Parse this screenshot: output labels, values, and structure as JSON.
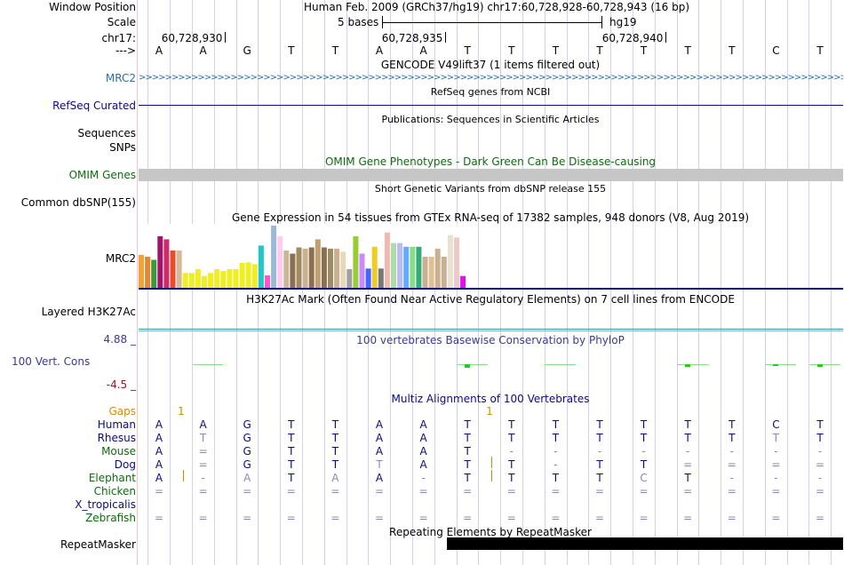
{
  "colors": {
    "label_black": "#000000",
    "label_blue": "#2a6db0",
    "label_navy": "#0c0c78",
    "label_green": "#0e6b0e",
    "label_orange": "#d88a00",
    "phylop_label": "#3b3b8f",
    "omim_title": "#0e6b0e",
    "grid": "#d3d3e8"
  },
  "header": {
    "window_position_label": "Window Position",
    "window_position_value": "Human Feb. 2009 (GRCh37/hg19)   chr17:60,728,928-60,728,943 (16 bp)",
    "scale_label": "Scale",
    "scale_left": "5 bases",
    "scale_right": "hg19",
    "chrom_label": "chr17:",
    "arrow_label": "--->",
    "positions": [
      "60,728,930",
      "60,728,935",
      "60,728,940"
    ],
    "bases": [
      "A",
      "A",
      "G",
      "T",
      "T",
      "A",
      "A",
      "T",
      "T",
      "T",
      "T",
      "T",
      "T",
      "T",
      "C",
      "T"
    ]
  },
  "tracks": {
    "gencode_title": "GENCODE V49lift37 (1 items filtered out)",
    "mrc2_label": "MRC2",
    "refseq_title": "RefSeq genes from NCBI",
    "refseq_label": "RefSeq Curated",
    "publications_title": "Publications: Sequences in Scientific Articles",
    "sequences_label": "Sequences",
    "snps_label": "SNPs",
    "omim_title": "OMIM Gene Phenotypes - Dark Green Can Be Disease-causing",
    "omim_label": "OMIM Genes",
    "dbsnp_title": "Short Genetic Variants from dbSNP release 155",
    "dbsnp_label": "Common dbSNP(155)",
    "gtex_title": "Gene Expression in 54 tissues from GTEx RNA-seq of 17382 samples, 948 donors (V8, Aug 2019)",
    "gtex_label": "MRC2",
    "h3k27_title": "H3K27Ac Mark (Often Found Near Active Regulatory Elements) on 7 cell lines from ENCODE",
    "h3k27_label": "Layered H3K27Ac",
    "phylop_title": "100 vertebrates Basewise Conservation by PhyloP",
    "phylop_label": "100 Vert. Cons",
    "phylop_max": "4.88 _",
    "phylop_min": "-4.5 _",
    "multiz_title": "Multiz Alignments of 100 Vertebrates",
    "repeat_title": "Repeating Elements by RepeatMasker",
    "repeat_label": "RepeatMasker"
  },
  "gtex_bars": [
    {
      "color": "#f2a23c",
      "value": 0.53
    },
    {
      "color": "#e8852f",
      "value": 0.5
    },
    {
      "color": "#3c9a3c",
      "value": 0.45
    },
    {
      "color": "#a0146e",
      "value": 0.83
    },
    {
      "color": "#cc2a6a",
      "value": 0.78
    },
    {
      "color": "#ee4a2a",
      "value": 0.6
    },
    {
      "color": "#d8b898",
      "value": 0.6
    },
    {
      "color": "#eeee22",
      "value": 0.24
    },
    {
      "color": "#eeee22",
      "value": 0.24
    },
    {
      "color": "#eeee22",
      "value": 0.3
    },
    {
      "color": "#eeee22",
      "value": 0.19
    },
    {
      "color": "#eeee22",
      "value": 0.24
    },
    {
      "color": "#eeee22",
      "value": 0.3
    },
    {
      "color": "#eeee22",
      "value": 0.27
    },
    {
      "color": "#eeee22",
      "value": 0.3
    },
    {
      "color": "#eeee22",
      "value": 0.3
    },
    {
      "color": "#eeee22",
      "value": 0.4
    },
    {
      "color": "#eeee22",
      "value": 0.41
    },
    {
      "color": "#eeee22",
      "value": 0.38
    },
    {
      "color": "#1ec8c8",
      "value": 0.68
    },
    {
      "color": "#ff55cc",
      "value": 0.2
    },
    {
      "color": "#9ab8d8",
      "value": 1.0
    },
    {
      "color": "#ffccee",
      "value": 0.83
    },
    {
      "color": "#c8b898",
      "value": 0.6
    },
    {
      "color": "#8a7050",
      "value": 0.55
    },
    {
      "color": "#a08a60",
      "value": 0.65
    },
    {
      "color": "#c8b090",
      "value": 0.63
    },
    {
      "color": "#8a7050",
      "value": 0.65
    },
    {
      "color": "#c0a070",
      "value": 0.78
    },
    {
      "color": "#8a7050",
      "value": 0.65
    },
    {
      "color": "#a08a60",
      "value": 0.63
    },
    {
      "color": "#c8b090",
      "value": 0.63
    },
    {
      "color": "#e8d8b8",
      "value": 0.58
    },
    {
      "color": "#a0a0a0",
      "value": 0.3
    },
    {
      "color": "#99cc33",
      "value": 0.83
    },
    {
      "color": "#cc88ff",
      "value": 0.55
    },
    {
      "color": "#4466ff",
      "value": 0.31
    },
    {
      "color": "#eecc22",
      "value": 0.66
    },
    {
      "color": "#777777",
      "value": 0.31
    },
    {
      "color": "#f0b8b0",
      "value": 0.89
    },
    {
      "color": "#aaddaa",
      "value": 0.72
    },
    {
      "color": "#bbbbee",
      "value": 0.72
    },
    {
      "color": "#66aaff",
      "value": 0.66
    },
    {
      "color": "#88dd88",
      "value": 0.66
    },
    {
      "color": "#33aa77",
      "value": 0.66
    },
    {
      "color": "#c8b090",
      "value": 0.5
    },
    {
      "color": "#e0c090",
      "value": 0.5
    },
    {
      "color": "#c8b090",
      "value": 0.63
    },
    {
      "color": "#c8b090",
      "value": 0.5
    },
    {
      "color": "#e8e0d0",
      "value": 0.85
    },
    {
      "color": "#f0c8c8",
      "value": 0.81
    },
    {
      "color": "#dd11ee",
      "value": 0.19
    }
  ],
  "alignment": {
    "gaps_label": "Gaps",
    "gap_marks": [
      {
        "col": 0.5,
        "text": "1"
      },
      {
        "col": 7.5,
        "text": "1"
      }
    ],
    "species": [
      {
        "name": "Human",
        "color": "#0c0c78",
        "row": [
          "A",
          "A",
          "G",
          "T",
          "T",
          "A",
          "A",
          "T",
          "T",
          "T",
          "T",
          "T",
          "T",
          "T",
          "C",
          "T"
        ]
      },
      {
        "name": "Rhesus",
        "color": "#0c0c78",
        "row": [
          "A",
          "T",
          "G",
          "T",
          "T",
          "A",
          "A",
          "T",
          "T",
          "T",
          "T",
          "T",
          "T",
          "T",
          "T",
          "T"
        ]
      },
      {
        "name": "Mouse",
        "color": "#0e6b0e",
        "row": [
          "A",
          "=",
          "G",
          "T",
          "T",
          "A",
          "A",
          "T",
          "-",
          "-",
          "-",
          "-",
          "-",
          "-",
          "-",
          "-"
        ]
      },
      {
        "name": "Dog",
        "color": "#0c0c78",
        "row": [
          "A",
          "=",
          "G",
          "T",
          "T",
          "T",
          "A",
          "T",
          "T",
          "-",
          "T",
          "T",
          "=",
          "=",
          "=",
          "="
        ]
      },
      {
        "name": "Elephant",
        "color": "#0e6b0e",
        "row": [
          "A",
          "-",
          "A",
          "T",
          "A",
          "A",
          "-",
          "T",
          "T",
          "T",
          "T",
          "C",
          "T",
          "-",
          "-",
          "-"
        ]
      },
      {
        "name": "Chicken",
        "color": "#0e6b0e",
        "row": [
          "=",
          "=",
          "=",
          "=",
          "=",
          "=",
          "=",
          "=",
          "=",
          "=",
          "=",
          "=",
          "=",
          "=",
          "=",
          "="
        ]
      },
      {
        "name": "X_tropicalis",
        "color": "#0c0c78",
        "row": [
          "",
          "",
          "",
          "",
          "",
          "",
          "",
          "",
          "",
          "",
          "",
          "",
          "",
          "",
          "",
          ""
        ]
      },
      {
        "name": "Zebrafish",
        "color": "#0e6b0e",
        "row": [
          "=",
          "=",
          "=",
          "=",
          "=",
          "=",
          "=",
          "=",
          "=",
          "=",
          "=",
          "=",
          "=",
          "=",
          "=",
          "="
        ]
      }
    ]
  }
}
